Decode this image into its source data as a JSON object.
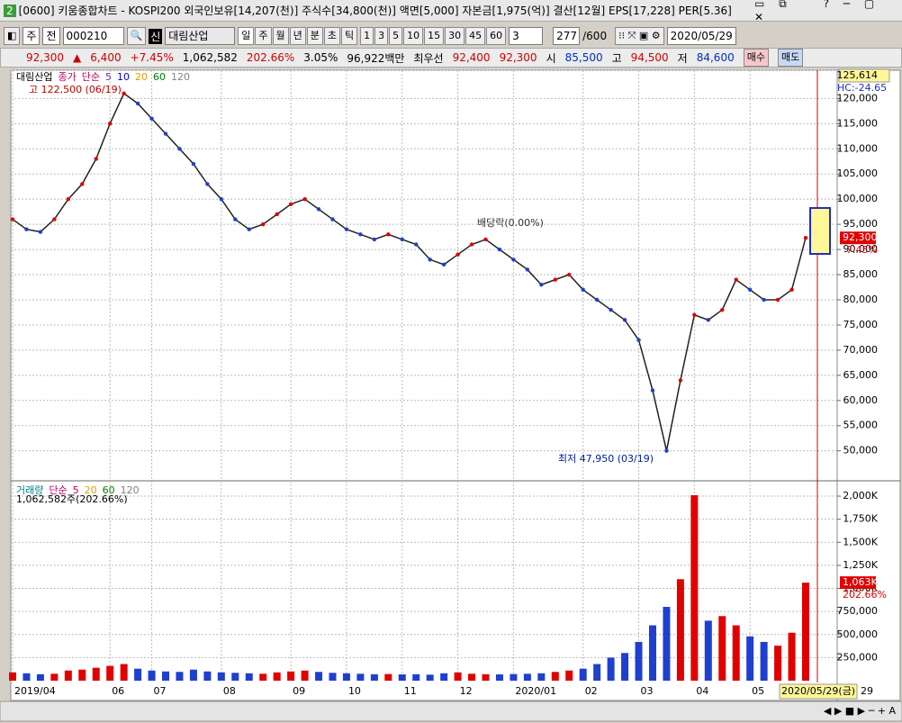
{
  "window": {
    "badge": "2",
    "title": "[0600] 키움종합차트 - KOSPI200 외국인보유[14,207(천)] 주식수[34,800(천)] 액면[5,000] 자본금[1,975(억)] 결산[12월] EPS[17,228] PER[5.36]"
  },
  "toolbar": {
    "market": "주",
    "kind": "전",
    "code": "000210",
    "name_badge": "신",
    "name": "대림산업",
    "periods": [
      "일",
      "주",
      "월",
      "년",
      "분",
      "초",
      "틱"
    ],
    "intervals": [
      "1",
      "3",
      "5",
      "10",
      "15",
      "30",
      "45",
      "60"
    ],
    "interval_value": "3",
    "count": "277",
    "count_max": "/600",
    "date": "2020/05/29"
  },
  "quote": {
    "price": "92,300",
    "arrow": "▲",
    "change": "6,400",
    "rate": "+7.45%",
    "volume": "1,062,582",
    "volume_ratio": "202.66%",
    "turnover": "3.05%",
    "amount": "96,922백만",
    "best_label": "최우선",
    "ask": "92,400",
    "bid": "92,300",
    "open_label": "시",
    "open": "85,500",
    "high_label": "고",
    "high": "94,500",
    "low_label": "저",
    "low": "84,600",
    "buy": "매수",
    "sell": "매도"
  },
  "chart_data": [
    {
      "type": "line",
      "legend": [
        {
          "label": "대림산업",
          "color": "#000000"
        },
        {
          "label": "종가",
          "color": "#c00060"
        },
        {
          "label": "단순",
          "color": "#c00060"
        },
        {
          "label": "5",
          "color": "#7030a0"
        },
        {
          "label": "10",
          "color": "#0000c0"
        },
        {
          "label": "20",
          "color": "#e0a000"
        },
        {
          "label": "60",
          "color": "#008000"
        },
        {
          "label": "120",
          "color": "#808080"
        }
      ],
      "annotations": {
        "high": "고 122,500 (06/19)",
        "low": "최저 47,950 (03/19)",
        "dividend": "배당락(0.00%)",
        "hc": "HC:-24.65",
        "current": "92,300",
        "current_rate": "7.45%"
      },
      "categories": [
        "2019/04",
        null,
        null,
        null,
        null,
        null,
        null,
        "06",
        null,
        null,
        "07",
        null,
        null,
        null,
        null,
        "08",
        null,
        null,
        null,
        null,
        "09",
        null,
        null,
        null,
        "10",
        null,
        null,
        null,
        "11",
        null,
        null,
        null,
        "12",
        null,
        null,
        null,
        "2020/01",
        null,
        null,
        null,
        null,
        "02",
        null,
        null,
        null,
        "03",
        null,
        null,
        null,
        "04",
        null,
        null,
        null,
        "05",
        null,
        null,
        null,
        null
      ],
      "series": [
        {
          "name": "종가",
          "color": "#222222",
          "values": [
            96000,
            94000,
            93500,
            96000,
            100000,
            103000,
            108000,
            115000,
            121000,
            119000,
            116000,
            113000,
            110000,
            107000,
            103000,
            100000,
            96000,
            94000,
            95000,
            97000,
            99000,
            100000,
            98000,
            96000,
            94000,
            93000,
            92000,
            93000,
            92000,
            91000,
            88000,
            87000,
            89000,
            91000,
            92000,
            90000,
            88000,
            86000,
            83000,
            84000,
            85000,
            82000,
            80000,
            78000,
            76000,
            72000,
            62000,
            50000,
            64000,
            77000,
            76000,
            78000,
            84000,
            82000,
            80000,
            80000,
            82000,
            92300
          ]
        }
      ],
      "ylim": [
        44400,
        125614
      ],
      "yticks": [
        {
          "value": 50000,
          "label": "50,000"
        },
        {
          "value": 55000,
          "label": "55,000"
        },
        {
          "value": 60000,
          "label": "60,000"
        },
        {
          "value": 65000,
          "label": "65,000"
        },
        {
          "value": 70000,
          "label": "70,000"
        },
        {
          "value": 75000,
          "label": "75,000"
        },
        {
          "value": 80000,
          "label": "80,000"
        },
        {
          "value": 85000,
          "label": "85,000"
        },
        {
          "value": 90000,
          "label": "90,000"
        },
        {
          "value": 95000,
          "label": "95,000"
        },
        {
          "value": 100000,
          "label": "100,000"
        },
        {
          "value": 105000,
          "label": "105,000"
        },
        {
          "value": 110000,
          "label": "110,000"
        },
        {
          "value": 115000,
          "label": "115,000"
        },
        {
          "value": 120000,
          "label": "120,000"
        },
        {
          "value": 125614,
          "label": "125,614"
        }
      ],
      "grid": true,
      "end_label": "2020/05/29(금)",
      "end_day": "29"
    },
    {
      "type": "bar",
      "legend": [
        {
          "label": "거래량",
          "color": "#008080"
        },
        {
          "label": "단순",
          "color": "#c00060"
        },
        {
          "label": "5",
          "color": "#c00060"
        },
        {
          "label": "20",
          "color": "#e0a000"
        },
        {
          "label": "60",
          "color": "#008000"
        },
        {
          "label": "120",
          "color": "#808080"
        }
      ],
      "info": "1,062,582주(202.66%)",
      "current": "1,063K",
      "current_rate": "202.66%",
      "up_color": "#e00000",
      "down_color": "#1f3fcf",
      "values": [
        90000,
        80000,
        70000,
        75000,
        110000,
        120000,
        140000,
        160000,
        180000,
        130000,
        110000,
        100000,
        95000,
        120000,
        100000,
        90000,
        85000,
        80000,
        75000,
        90000,
        100000,
        110000,
        95000,
        85000,
        80000,
        75000,
        70000,
        72000,
        68000,
        70000,
        65000,
        80000,
        90000,
        75000,
        70000,
        68000,
        72000,
        75000,
        80000,
        95000,
        110000,
        130000,
        180000,
        250000,
        300000,
        420000,
        600000,
        800000,
        1100000,
        2010000,
        650000,
        700000,
        600000,
        480000,
        420000,
        380000,
        520000,
        1062582
      ],
      "ylim": [
        0,
        2137000
      ],
      "yticks": [
        {
          "value": 250000,
          "label": "250,000"
        },
        {
          "value": 500000,
          "label": "500,000"
        },
        {
          "value": 750000,
          "label": "750,000"
        },
        {
          "value": 1000000,
          "label": "1,000K"
        },
        {
          "value": 1250000,
          "label": "1,250K"
        },
        {
          "value": 1500000,
          "label": "1,500K"
        },
        {
          "value": 1750000,
          "label": "1,750K"
        },
        {
          "value": 2000000,
          "label": "2,000K"
        }
      ],
      "grid": true
    }
  ]
}
